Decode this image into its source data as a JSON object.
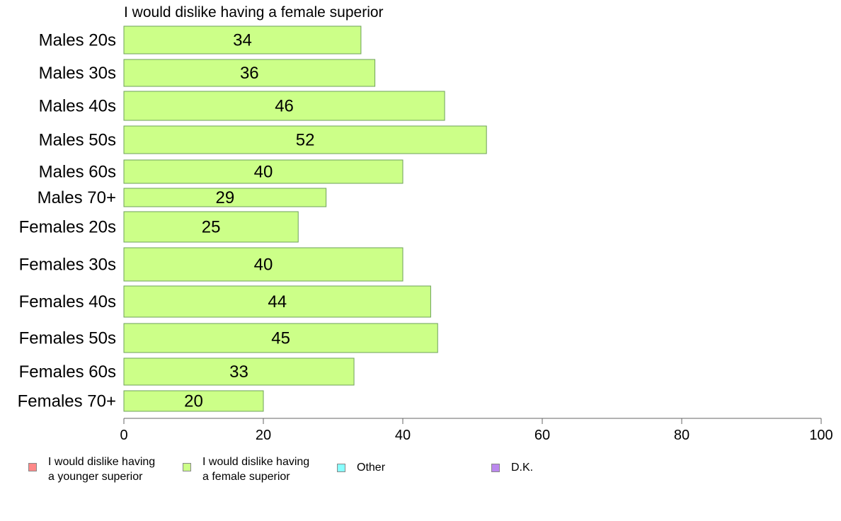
{
  "chart_data": {
    "type": "bar",
    "orientation": "horizontal",
    "title": "I would dislike having a female superior",
    "categories": [
      "Males 20s",
      "Males 30s",
      "Males 40s",
      "Males 50s",
      "Males 60s",
      "Males 70+",
      "Females 20s",
      "Females 30s",
      "Females 40s",
      "Females 50s",
      "Females 60s",
      "Females 70+"
    ],
    "values": [
      34,
      36,
      46,
      52,
      40,
      29,
      25,
      40,
      44,
      45,
      33,
      20
    ],
    "data_labels": [
      "34",
      "36",
      "46",
      "52",
      "40",
      "29",
      "25",
      "40",
      "44",
      "45",
      "33",
      "20"
    ],
    "xlim": [
      0,
      100
    ],
    "x_ticks": [
      "0",
      "20",
      "40",
      "60",
      "80",
      "100"
    ],
    "bar_color": "#ccff88",
    "bar_edge_color": "#6ea05a",
    "legend_position": "bottom",
    "legend": [
      {
        "line1": "I would dislike having",
        "line2": "a younger superior",
        "color": "#ff8888"
      },
      {
        "line1": "I would dislike having",
        "line2": "a female superior",
        "color": "#ccff88"
      },
      {
        "line1": "Other",
        "line2": "",
        "color": "#88ffff"
      },
      {
        "line1": "D.K.",
        "line2": "",
        "color": "#bb88ee"
      }
    ]
  }
}
